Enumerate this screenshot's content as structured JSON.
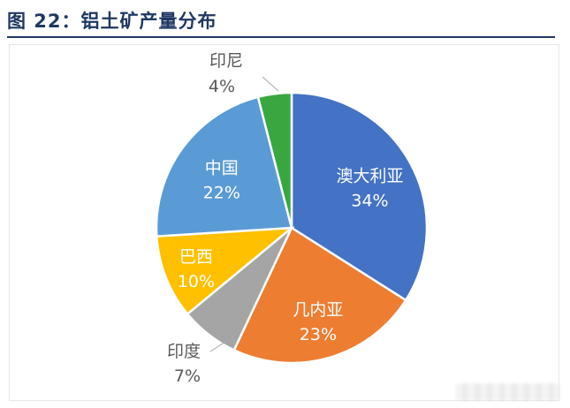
{
  "figure": {
    "title": "图 22：铝土矿产量分布"
  },
  "chart_data": {
    "type": "pie",
    "title": "",
    "start_angle_deg": 0,
    "direction": "clockwise",
    "slices": [
      {
        "label": "澳大利亚",
        "value_text": "34%",
        "value": 34,
        "color": "#4472c4",
        "label_position": "inside",
        "label_color": "#ffffff"
      },
      {
        "label": "几内亚",
        "value_text": "23%",
        "value": 23,
        "color": "#ed7d31",
        "label_position": "inside",
        "label_color": "#ffffff"
      },
      {
        "label": "印度",
        "value_text": "7%",
        "value": 7,
        "color": "#a5a5a5",
        "label_position": "outside",
        "label_color": "#595959"
      },
      {
        "label": "巴西",
        "value_text": "10%",
        "value": 10,
        "color": "#ffc000",
        "label_position": "inside",
        "label_color": "#ffffff"
      },
      {
        "label": "中国",
        "value_text": "22%",
        "value": 22,
        "color": "#5b9bd5",
        "label_position": "inside",
        "label_color": "#ffffff"
      },
      {
        "label": "印尼",
        "value_text": "4%",
        "value": 4,
        "color": "#3aa640",
        "label_position": "outside",
        "label_color": "#595959"
      }
    ],
    "legend": "none"
  }
}
